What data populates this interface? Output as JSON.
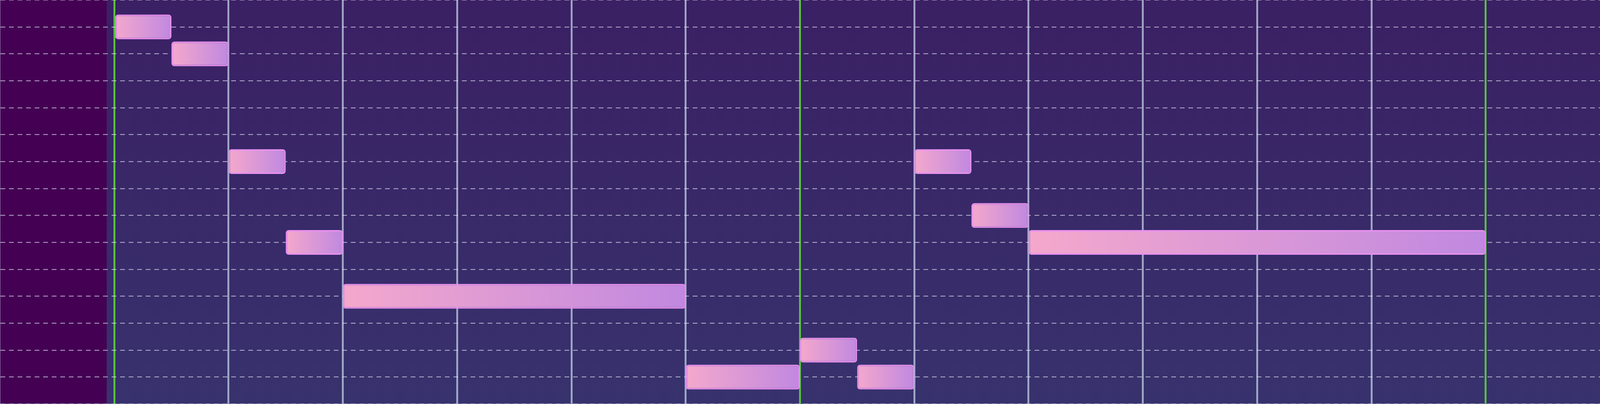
{
  "chart_data": {
    "type": "bar",
    "orientation": "horizontal",
    "notes": [
      {
        "start": 0,
        "end": 0.5,
        "pitch": 13
      },
      {
        "start": 0.5,
        "end": 1,
        "pitch": 12
      },
      {
        "start": 1,
        "end": 1.5,
        "pitch": 8
      },
      {
        "start": 1.5,
        "end": 2,
        "pitch": 5
      },
      {
        "start": 2,
        "end": 5,
        "pitch": 3
      },
      {
        "start": 5,
        "end": 6,
        "pitch": 0
      },
      {
        "start": 6,
        "end": 6.5,
        "pitch": 1
      },
      {
        "start": 6.5,
        "end": 7,
        "pitch": 0
      },
      {
        "start": 7,
        "end": 7.5,
        "pitch": 8
      },
      {
        "start": 7.5,
        "end": 8,
        "pitch": 6
      },
      {
        "start": 8,
        "end": 12,
        "pitch": 5
      }
    ],
    "color": "#f4a8cc",
    "xlim": [
      -1,
      13
    ],
    "xticks": [
      0,
      1,
      2,
      3,
      4,
      5,
      6,
      7,
      8,
      9,
      10,
      11,
      12
    ],
    "ylim": [
      -0.5,
      13.5
    ],
    "yticks": [
      -0.5,
      0.5,
      1.5,
      2.5,
      3.5,
      4.5,
      5.5,
      6.5,
      7.5,
      8.5,
      9.5,
      10.5,
      11.5,
      12.5,
      13.5
    ],
    "grid": true,
    "tick_labels": false
  }
}
